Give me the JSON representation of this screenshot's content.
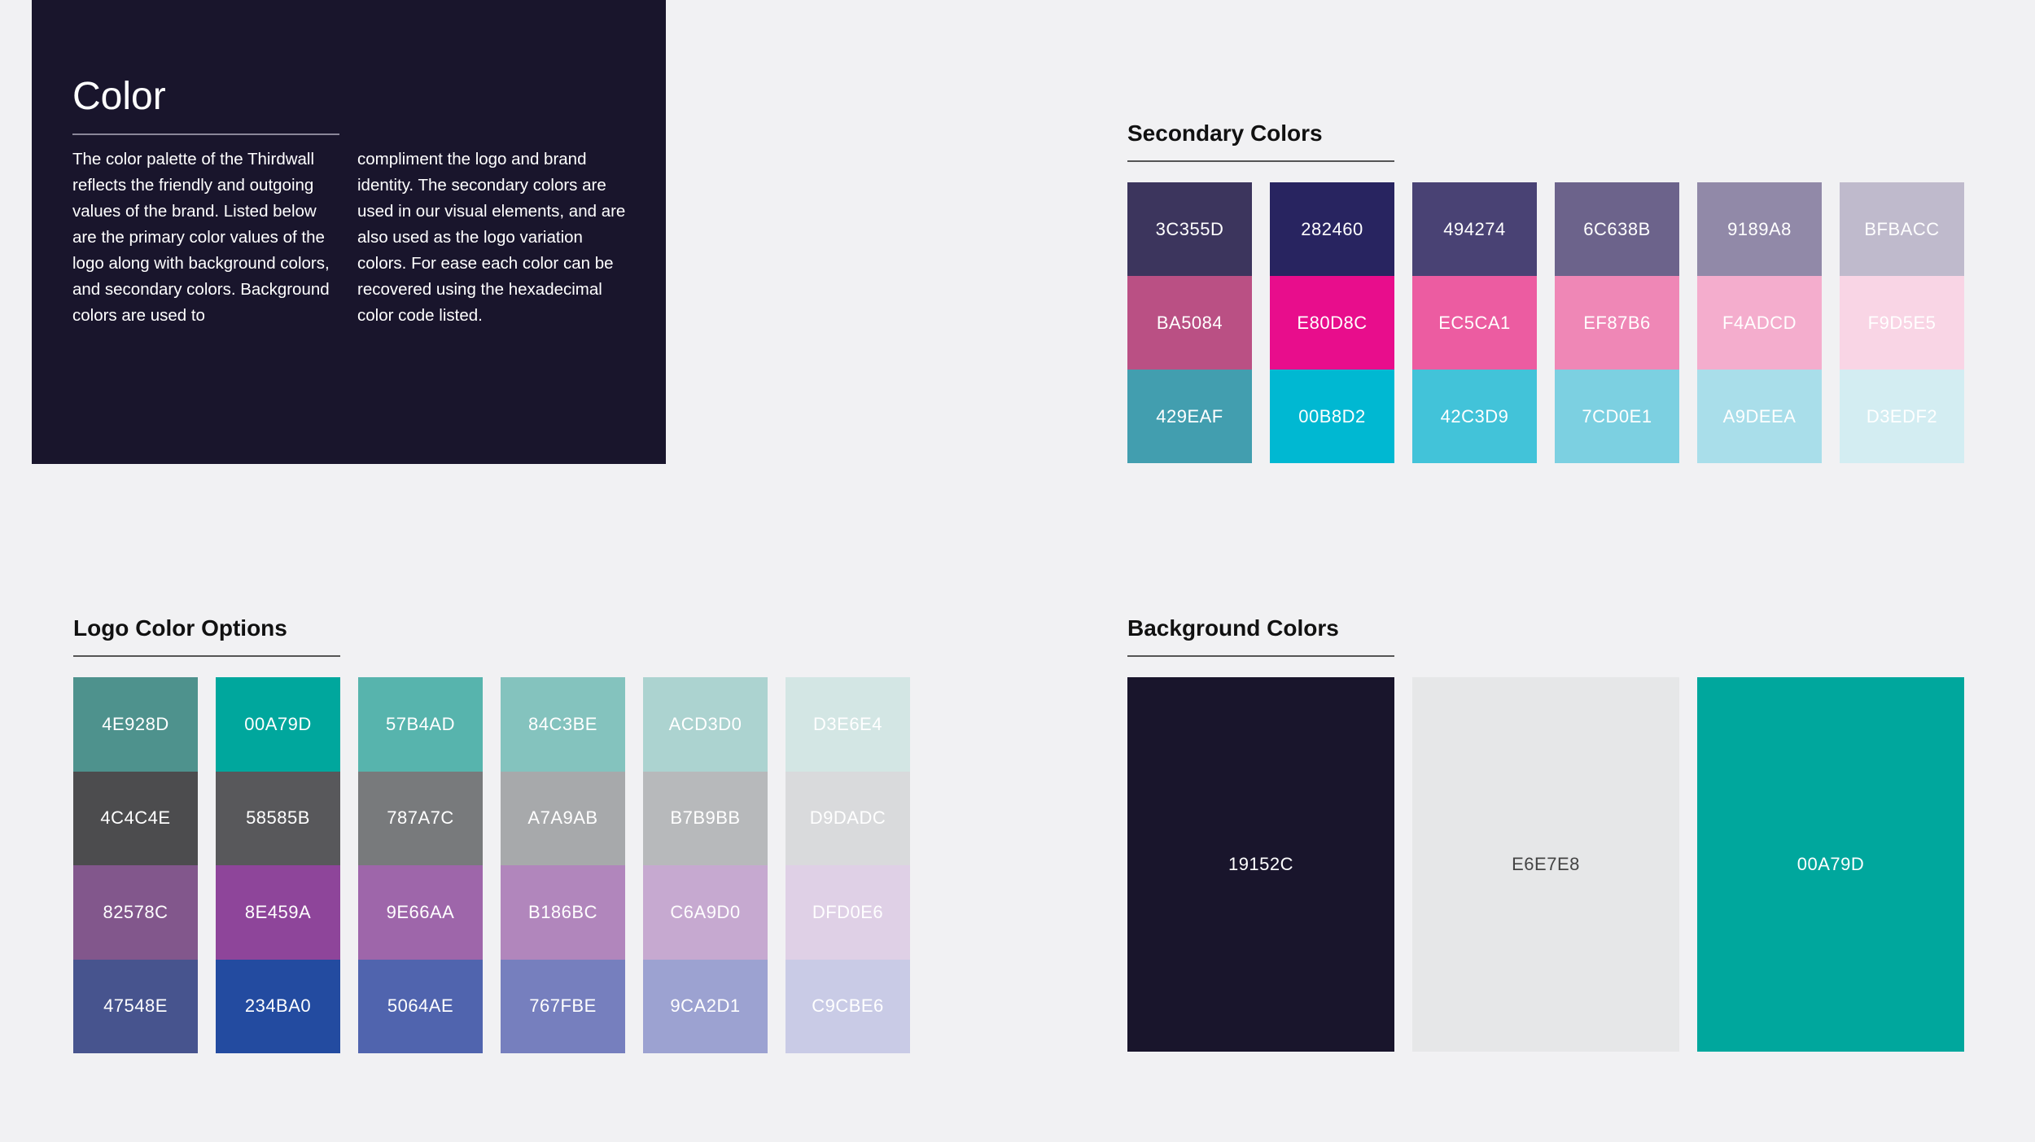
{
  "intro": {
    "title": "Color",
    "col1": "The color palette of the Thirdwall reflects the friendly and outgoing values of the brand. Listed below are the primary color values of the logo along with background colors, and secondary colors. Background colors are used to",
    "col2": "compliment the logo and brand identity. The secondary colors are used in our visual elements, and are also used as the logo variation colors. For ease each color can be recovered using the hexadecimal color code listed."
  },
  "secondary": {
    "title": "Secondary Colors",
    "columns": [
      [
        {
          "code": "3C355D",
          "hex": "#3C355D",
          "text": "#ffffff"
        },
        {
          "code": "BA5084",
          "hex": "#BA5084",
          "text": "#ffffff"
        },
        {
          "code": "429EAF",
          "hex": "#429EAF",
          "text": "#ffffff"
        }
      ],
      [
        {
          "code": "282460",
          "hex": "#282460",
          "text": "#ffffff"
        },
        {
          "code": "E80D8C",
          "hex": "#E80D8C",
          "text": "#ffffff"
        },
        {
          "code": "00B8D2",
          "hex": "#00B8D2",
          "text": "#ffffff"
        }
      ],
      [
        {
          "code": "494274",
          "hex": "#494274",
          "text": "#ffffff"
        },
        {
          "code": "EC5CA1",
          "hex": "#EC5CA1",
          "text": "#ffffff"
        },
        {
          "code": "42C3D9",
          "hex": "#42C3D9",
          "text": "#ffffff"
        }
      ],
      [
        {
          "code": "6C638B",
          "hex": "#6C638B",
          "text": "#ffffff"
        },
        {
          "code": "EF87B6",
          "hex": "#EF87B6",
          "text": "#ffffff"
        },
        {
          "code": "7CD0E1",
          "hex": "#7CD0E1",
          "text": "#ffffff"
        }
      ],
      [
        {
          "code": "9189A8",
          "hex": "#9189A8",
          "text": "#ffffff"
        },
        {
          "code": "F4ADCD",
          "hex": "#F4ADCD",
          "text": "#ffffff"
        },
        {
          "code": "A9DEEA",
          "hex": "#A9DEEA",
          "text": "#ffffff"
        }
      ],
      [
        {
          "code": "BFBACC",
          "hex": "#BFBACC",
          "text": "#ffffff"
        },
        {
          "code": "F9D5E5",
          "hex": "#F9D5E5",
          "text": "#ffffff"
        },
        {
          "code": "D3EDF2",
          "hex": "#D3EDF2",
          "text": "#ffffff"
        }
      ]
    ]
  },
  "logo": {
    "title": "Logo Color Options",
    "columns": [
      [
        {
          "code": "4E928D",
          "hex": "#4E928D",
          "text": "#ffffff"
        },
        {
          "code": "4C4C4E",
          "hex": "#4C4C4E",
          "text": "#ffffff"
        },
        {
          "code": "82578C",
          "hex": "#82578C",
          "text": "#ffffff"
        },
        {
          "code": "47548E",
          "hex": "#47548E",
          "text": "#ffffff"
        }
      ],
      [
        {
          "code": "00A79D",
          "hex": "#00A79D",
          "text": "#ffffff"
        },
        {
          "code": "58585B",
          "hex": "#58585B",
          "text": "#ffffff"
        },
        {
          "code": "8E459A",
          "hex": "#8E459A",
          "text": "#ffffff"
        },
        {
          "code": "234BA0",
          "hex": "#234BA0",
          "text": "#ffffff"
        }
      ],
      [
        {
          "code": "57B4AD",
          "hex": "#57B4AD",
          "text": "#ffffff"
        },
        {
          "code": "787A7C",
          "hex": "#787A7C",
          "text": "#ffffff"
        },
        {
          "code": "9E66AA",
          "hex": "#9E66AA",
          "text": "#ffffff"
        },
        {
          "code": "5064AE",
          "hex": "#5064AE",
          "text": "#ffffff"
        }
      ],
      [
        {
          "code": "84C3BE",
          "hex": "#84C3BE",
          "text": "#ffffff"
        },
        {
          "code": "A7A9AB",
          "hex": "#A7A9AB",
          "text": "#ffffff"
        },
        {
          "code": "B186BC",
          "hex": "#B186BC",
          "text": "#ffffff"
        },
        {
          "code": "767FBE",
          "hex": "#767FBE",
          "text": "#ffffff"
        }
      ],
      [
        {
          "code": "ACD3D0",
          "hex": "#ACD3D0",
          "text": "#ffffff"
        },
        {
          "code": "B7B9BB",
          "hex": "#B7B9BB",
          "text": "#ffffff"
        },
        {
          "code": "C6A9D0",
          "hex": "#C6A9D0",
          "text": "#ffffff"
        },
        {
          "code": "9CA2D1",
          "hex": "#9CA2D1",
          "text": "#ffffff"
        }
      ],
      [
        {
          "code": "D3E6E4",
          "hex": "#D3E6E4",
          "text": "#ffffff"
        },
        {
          "code": "D9DADC",
          "hex": "#D9DADC",
          "text": "#ffffff"
        },
        {
          "code": "DFD0E6",
          "hex": "#DFD0E6",
          "text": "#ffffff"
        },
        {
          "code": "C9CBE6",
          "hex": "#C9CBE6",
          "text": "#ffffff"
        }
      ]
    ]
  },
  "background": {
    "title": "Background Colors",
    "columns": [
      [
        {
          "code": "19152C",
          "hex": "#19152C",
          "text": "#ffffff"
        }
      ],
      [
        {
          "code": "E6E7E8",
          "hex": "#E6E7E8",
          "text": "#444444"
        }
      ],
      [
        {
          "code": "00A79D",
          "hex": "#00A79D",
          "text": "#ffffff"
        }
      ]
    ]
  }
}
